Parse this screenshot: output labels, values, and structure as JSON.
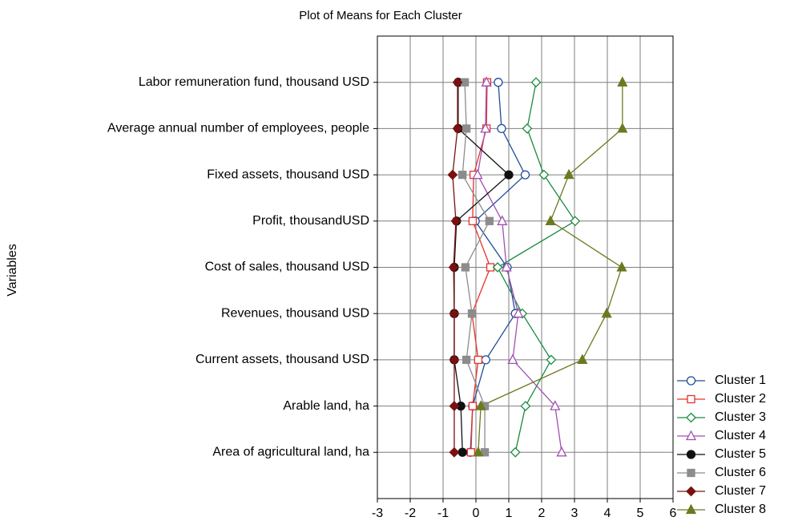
{
  "chart_data": {
    "type": "line",
    "orientation": "horizontal",
    "title": "Plot of Means for Each Cluster",
    "y_label": "Variables",
    "categories": [
      "Labor remuneration fund, thousand USD",
      "Average annual number of employees, people",
      "Fixed assets, thousand USD",
      "Profit, thousandUSD",
      "Cost of sales, thousand USD",
      "Revenues, thousand USD",
      "Current assets, thousand USD",
      "Arable land, ha",
      "Area of agricultural land, ha"
    ],
    "xlim": [
      -3,
      6
    ],
    "xticks": [
      -3,
      -2,
      -1,
      0,
      1,
      2,
      3,
      4,
      5,
      6
    ],
    "grid": true,
    "legend": "lower right",
    "series": [
      {
        "name": "Cluster 1",
        "color": "#1f4e9c",
        "marker": "circle",
        "filled": false,
        "values": [
          0.68,
          0.78,
          1.5,
          -0.02,
          0.95,
          1.2,
          0.3,
          -0.1,
          -0.17
        ]
      },
      {
        "name": "Cluster 2",
        "color": "#e8302a",
        "marker": "square",
        "filled": false,
        "values": [
          0.34,
          0.32,
          -0.07,
          -0.1,
          0.44,
          -0.12,
          0.07,
          -0.1,
          -0.15
        ]
      },
      {
        "name": "Cluster 3",
        "color": "#1a8a3e",
        "marker": "diamond",
        "filled": false,
        "values": [
          1.83,
          1.56,
          2.07,
          3.02,
          0.66,
          1.41,
          2.29,
          1.51,
          1.2
        ]
      },
      {
        "name": "Cluster 4",
        "color": "#a050b0",
        "marker": "triangle",
        "filled": false,
        "values": [
          0.32,
          0.29,
          0.05,
          0.8,
          0.93,
          1.29,
          1.12,
          2.41,
          2.61
        ]
      },
      {
        "name": "Cluster 5",
        "color": "#111111",
        "marker": "circle",
        "filled": true,
        "values": [
          -0.54,
          -0.54,
          1.0,
          -0.59,
          -0.66,
          -0.66,
          -0.66,
          -0.46,
          -0.41
        ]
      },
      {
        "name": "Cluster 6",
        "color": "#8c8c8c",
        "marker": "square",
        "filled": true,
        "values": [
          -0.34,
          -0.29,
          -0.41,
          0.41,
          -0.32,
          -0.12,
          -0.29,
          0.27,
          0.27
        ]
      },
      {
        "name": "Cluster 7",
        "color": "#7a1010",
        "marker": "diamond",
        "filled": true,
        "values": [
          -0.56,
          -0.56,
          -0.71,
          -0.61,
          -0.68,
          -0.66,
          -0.66,
          -0.66,
          -0.66
        ]
      },
      {
        "name": "Cluster 8",
        "color": "#6b7a1f",
        "marker": "triangle",
        "filled": true,
        "values": [
          4.46,
          4.46,
          2.83,
          2.27,
          4.44,
          3.98,
          3.24,
          0.15,
          0.07
        ]
      }
    ]
  }
}
